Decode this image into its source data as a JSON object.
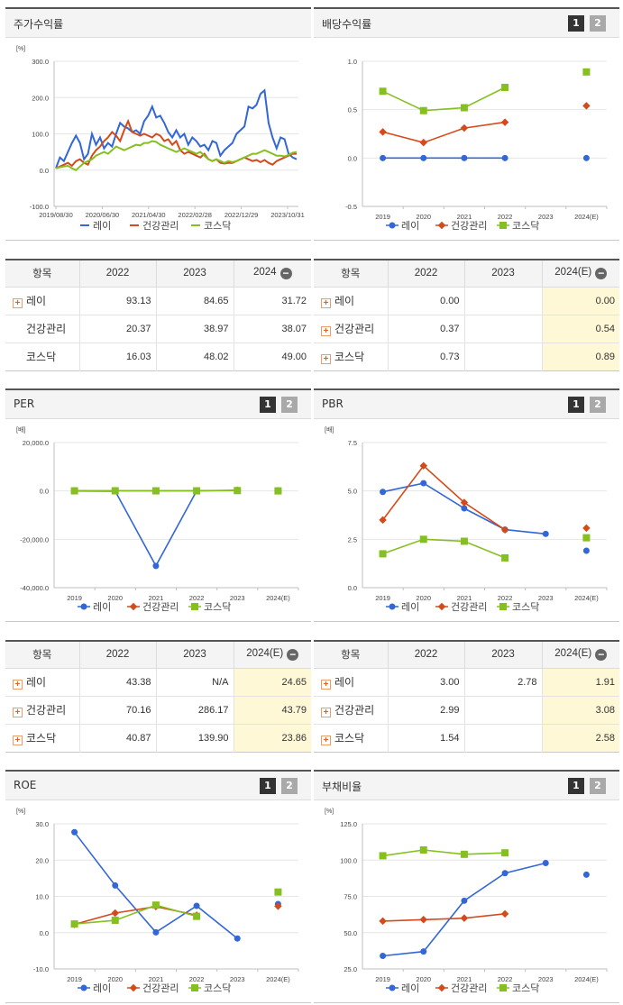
{
  "colors": {
    "rei": "#3366d6",
    "health": "#d44a1b",
    "kosdaq": "#85c020"
  },
  "legend": [
    "레이",
    "건강관리",
    "코스닥"
  ],
  "pager": [
    "1",
    "2"
  ],
  "panels": {
    "stock": {
      "title": "주가수익률",
      "unit": "[%]"
    },
    "dividend": {
      "title": "배당수익률",
      "unit": ""
    },
    "per": {
      "title": "PER",
      "unit": "[배]"
    },
    "pbr": {
      "title": "PBR",
      "unit": "[배]"
    },
    "roe": {
      "title": "ROE",
      "unit": "[%]"
    },
    "debt": {
      "title": "부채비율",
      "unit": "[%]"
    }
  },
  "tables": {
    "stock": {
      "header": [
        "항목",
        "2022",
        "2023",
        "2024"
      ],
      "rows": [
        {
          "name": "레이",
          "plus": true,
          "values": [
            "93.13",
            "84.65",
            "31.72"
          ]
        },
        {
          "name": "건강관리",
          "plus": false,
          "values": [
            "20.37",
            "38.97",
            "38.07"
          ]
        },
        {
          "name": "코스닥",
          "plus": false,
          "values": [
            "16.03",
            "48.02",
            "49.00"
          ]
        }
      ]
    },
    "dividend": {
      "header": [
        "항목",
        "2022",
        "2023",
        "2024(E)"
      ],
      "rows": [
        {
          "name": "레이",
          "plus": true,
          "values": [
            "0.00",
            "",
            "0.00"
          ]
        },
        {
          "name": "건강관리",
          "plus": true,
          "values": [
            "0.37",
            "",
            "0.54"
          ]
        },
        {
          "name": "코스닥",
          "plus": true,
          "values": [
            "0.73",
            "",
            "0.89"
          ]
        }
      ]
    },
    "per": {
      "header": [
        "항목",
        "2022",
        "2023",
        "2024(E)"
      ],
      "rows": [
        {
          "name": "레이",
          "plus": true,
          "values": [
            "43.38",
            "N/A",
            "24.65"
          ]
        },
        {
          "name": "건강관리",
          "plus": true,
          "values": [
            "70.16",
            "286.17",
            "43.79"
          ]
        },
        {
          "name": "코스닥",
          "plus": true,
          "values": [
            "40.87",
            "139.90",
            "23.86"
          ]
        }
      ]
    },
    "pbr": {
      "header": [
        "항목",
        "2022",
        "2023",
        "2024(E)"
      ],
      "rows": [
        {
          "name": "레이",
          "plus": true,
          "values": [
            "3.00",
            "2.78",
            "1.91"
          ]
        },
        {
          "name": "건강관리",
          "plus": true,
          "values": [
            "2.99",
            "",
            "3.08"
          ]
        },
        {
          "name": "코스닥",
          "plus": true,
          "values": [
            "1.54",
            "",
            "2.58"
          ]
        }
      ]
    }
  },
  "chart_data": [
    {
      "id": "stock",
      "type": "line",
      "title": "주가수익률",
      "ylabel": "[%]",
      "ylim": [
        -100,
        300
      ],
      "yticks": [
        "300.0",
        "200.0",
        "100.0",
        "0.0",
        "-100.0"
      ],
      "xticks": [
        "2019/08/30",
        "2020/06/30",
        "2021/04/30",
        "2022/02/28",
        "2022/12/29",
        "2023/10/31"
      ],
      "series": [
        {
          "name": "레이",
          "values": [
            5,
            35,
            25,
            50,
            75,
            95,
            75,
            30,
            45,
            100,
            70,
            90,
            60,
            75,
            65,
            100,
            130,
            120,
            115,
            105,
            110,
            100,
            135,
            150,
            175,
            145,
            150,
            130,
            105,
            90,
            110,
            90,
            100,
            70,
            90,
            80,
            65,
            70,
            55,
            80,
            75,
            40,
            55,
            65,
            75,
            100,
            110,
            120,
            175,
            170,
            180,
            210,
            220,
            130,
            90,
            60,
            90,
            85,
            45,
            35,
            30
          ]
        },
        {
          "name": "건강관리",
          "values": [
            5,
            10,
            15,
            20,
            12,
            25,
            30,
            20,
            15,
            40,
            55,
            65,
            80,
            90,
            105,
            95,
            80,
            110,
            135,
            105,
            100,
            95,
            100,
            95,
            90,
            100,
            95,
            80,
            85,
            70,
            80,
            55,
            45,
            50,
            45,
            40,
            35,
            45,
            30,
            25,
            30,
            20,
            18,
            20,
            20,
            25,
            30,
            35,
            30,
            25,
            28,
            22,
            28,
            20,
            15,
            25,
            30,
            35,
            40,
            45,
            45
          ]
        },
        {
          "name": "코스닥",
          "values": [
            5,
            8,
            10,
            12,
            5,
            0,
            10,
            20,
            25,
            30,
            40,
            45,
            50,
            45,
            55,
            65,
            60,
            55,
            60,
            65,
            70,
            68,
            75,
            75,
            80,
            78,
            70,
            65,
            60,
            55,
            50,
            55,
            60,
            55,
            50,
            45,
            50,
            40,
            30,
            25,
            30,
            25,
            20,
            25,
            22,
            25,
            30,
            35,
            40,
            45,
            45,
            50,
            55,
            50,
            45,
            40,
            40,
            38,
            42,
            48,
            50
          ]
        }
      ]
    },
    {
      "id": "dividend",
      "type": "line",
      "title": "배당수익률",
      "ylim": [
        -0.5,
        1.0
      ],
      "yticks": [
        "1.0",
        "0.5",
        "0.0",
        "-0.5"
      ],
      "categories": [
        "2019",
        "2020",
        "2021",
        "2022",
        "2023",
        "2024(E)"
      ],
      "series": [
        {
          "name": "레이",
          "values": [
            0.0,
            0.0,
            0.0,
            0.0,
            null,
            0.0
          ]
        },
        {
          "name": "건강관리",
          "values": [
            0.27,
            0.16,
            0.31,
            0.37,
            null,
            0.54
          ]
        },
        {
          "name": "코스닥",
          "values": [
            0.69,
            0.49,
            0.52,
            0.73,
            null,
            0.89
          ]
        }
      ]
    },
    {
      "id": "per",
      "type": "line",
      "title": "PER",
      "ylabel": "[배]",
      "ylim": [
        -40000,
        20000
      ],
      "yticks": [
        "20,000.0",
        "0.0",
        "-20,000.0",
        "-40,000.0"
      ],
      "categories": [
        "2019",
        "2020",
        "2021",
        "2022",
        "2023",
        "2024(E)"
      ],
      "series": [
        {
          "name": "레이",
          "values": [
            0,
            -100,
            -31000,
            43.38,
            null,
            24.65
          ]
        },
        {
          "name": "건강관리",
          "values": [
            50,
            80,
            60,
            70.16,
            286.17,
            43.79
          ]
        },
        {
          "name": "코스닥",
          "values": [
            45,
            60,
            40,
            40.87,
            139.9,
            23.86
          ]
        }
      ]
    },
    {
      "id": "pbr",
      "type": "line",
      "title": "PBR",
      "ylabel": "[배]",
      "ylim": [
        0,
        7.5
      ],
      "yticks": [
        "7.5",
        "5.0",
        "2.5",
        "0.0"
      ],
      "categories": [
        "2019",
        "2020",
        "2021",
        "2022",
        "2023",
        "2024(E)"
      ],
      "series": [
        {
          "name": "레이",
          "values": [
            4.95,
            5.4,
            4.1,
            3.0,
            2.78,
            1.91
          ]
        },
        {
          "name": "건강관리",
          "values": [
            3.5,
            6.3,
            4.4,
            2.99,
            null,
            3.08
          ]
        },
        {
          "name": "코스닥",
          "values": [
            1.75,
            2.5,
            2.4,
            1.54,
            null,
            2.58
          ]
        }
      ]
    },
    {
      "id": "roe",
      "type": "line",
      "title": "ROE",
      "ylabel": "[%]",
      "ylim": [
        -10,
        30
      ],
      "yticks": [
        "30.0",
        "20.0",
        "10.0",
        "0.0",
        "-10.0"
      ],
      "categories": [
        "2019",
        "2020",
        "2021",
        "2022",
        "2023",
        "2024(E)"
      ],
      "series": [
        {
          "name": "레이",
          "values": [
            27.7,
            13.0,
            0.1,
            7.4,
            -1.6,
            7.9
          ]
        },
        {
          "name": "건강관리",
          "values": [
            2.3,
            5.4,
            7.2,
            4.8,
            null,
            7.3
          ]
        },
        {
          "name": "코스닥",
          "values": [
            2.4,
            3.4,
            7.6,
            4.5,
            null,
            11.2
          ]
        }
      ]
    },
    {
      "id": "debt",
      "type": "line",
      "title": "부채비율",
      "ylabel": "[%]",
      "ylim": [
        25,
        125
      ],
      "yticks": [
        "125.0",
        "100.0",
        "75.0",
        "50.0",
        "25.0"
      ],
      "categories": [
        "2019",
        "2020",
        "2021",
        "2022",
        "2023",
        "2024(E)"
      ],
      "series": [
        {
          "name": "레이",
          "values": [
            34,
            37,
            72,
            91,
            98,
            90
          ]
        },
        {
          "name": "건강관리",
          "values": [
            58,
            59,
            60,
            63,
            null,
            null
          ]
        },
        {
          "name": "코스닥",
          "values": [
            103,
            107,
            104,
            105,
            null,
            null
          ]
        }
      ]
    }
  ]
}
